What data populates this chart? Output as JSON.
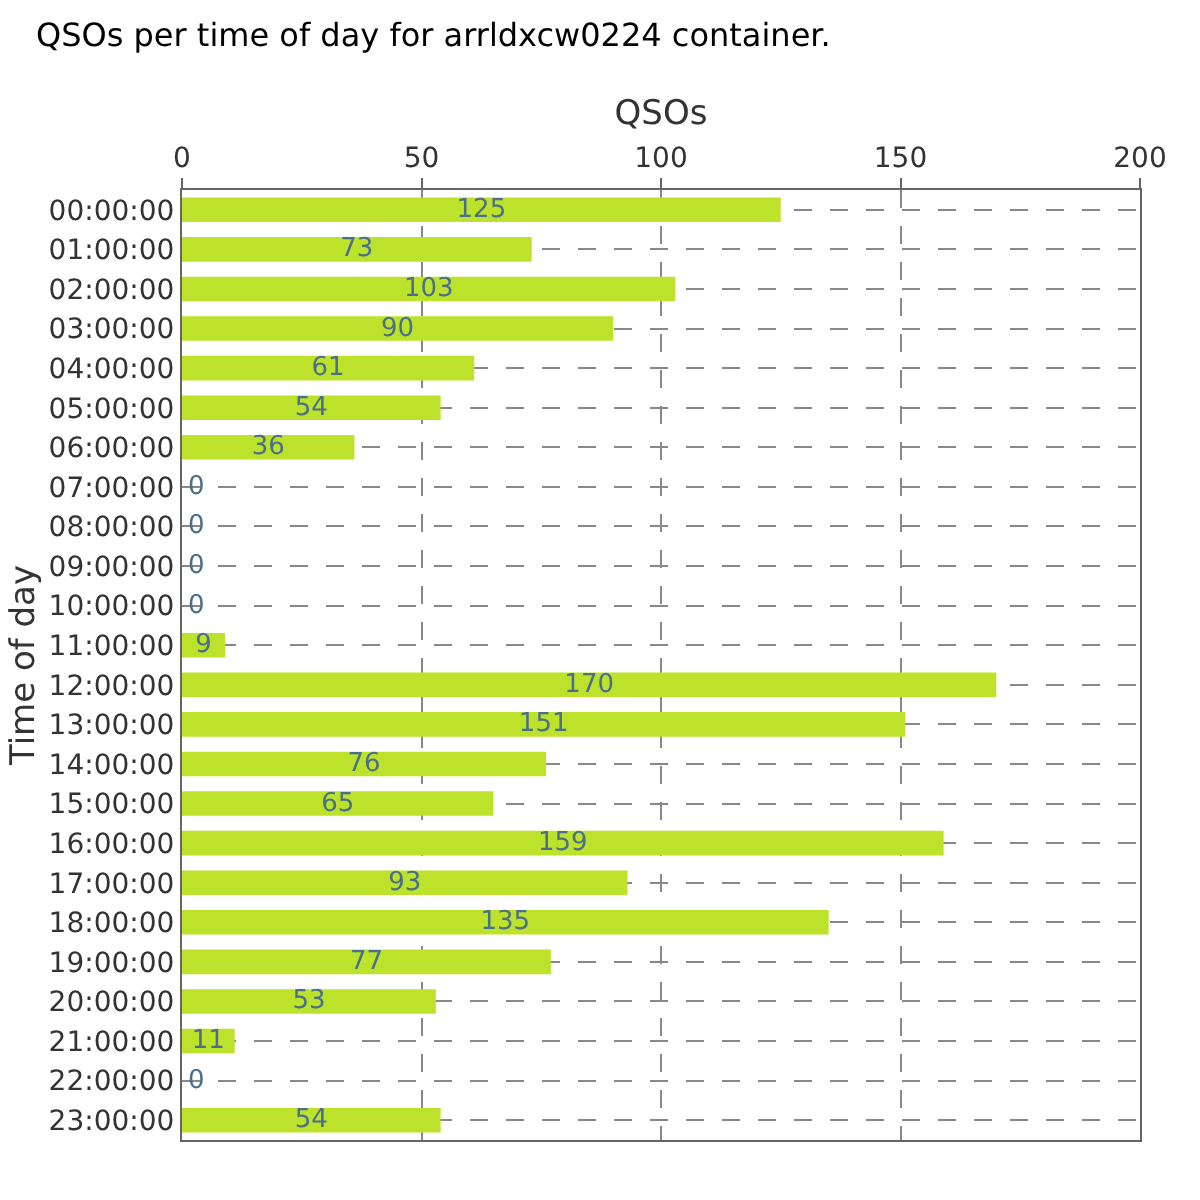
{
  "chart_data": {
    "type": "bar",
    "orientation": "horizontal",
    "title": "QSOs per time of day for arrldxcw0224 container.",
    "xlabel": "QSOs",
    "ylabel": "Time of day",
    "categories": [
      "00:00:00",
      "01:00:00",
      "02:00:00",
      "03:00:00",
      "04:00:00",
      "05:00:00",
      "06:00:00",
      "07:00:00",
      "08:00:00",
      "09:00:00",
      "10:00:00",
      "11:00:00",
      "12:00:00",
      "13:00:00",
      "14:00:00",
      "15:00:00",
      "16:00:00",
      "17:00:00",
      "18:00:00",
      "19:00:00",
      "20:00:00",
      "21:00:00",
      "22:00:00",
      "23:00:00"
    ],
    "values": [
      125,
      73,
      103,
      90,
      61,
      54,
      36,
      0,
      0,
      0,
      0,
      9,
      170,
      151,
      76,
      65,
      159,
      93,
      135,
      77,
      53,
      11,
      0,
      54
    ],
    "color": "#bce22b",
    "xlim": [
      0,
      200
    ],
    "xticks": [
      0,
      50,
      100,
      150,
      200
    ],
    "grid": true,
    "data_labels": true
  }
}
